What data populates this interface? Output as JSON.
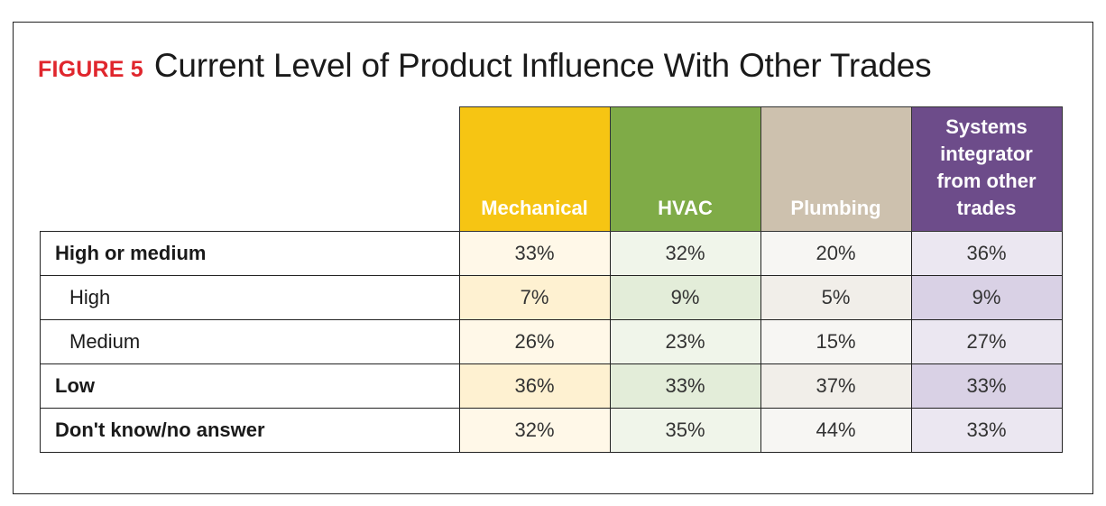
{
  "figure": {
    "label": "FIGURE 5",
    "title": "Current Level of Product Influence With Other Trades"
  },
  "colors": {
    "figure_label": "#e0262d",
    "mechanical": "#f6c513",
    "hvac": "#7fab47",
    "plumbing": "#cdc1ae",
    "systems": "#6d4c8a"
  },
  "chart_data": {
    "type": "table",
    "title": "Current Level of Product Influence With Other Trades",
    "columns": [
      "Mechanical",
      "HVAC",
      "Plumbing",
      "Systems integrator from other trades"
    ],
    "rows": [
      {
        "label": "High or medium",
        "level": "main",
        "values": [
          "33%",
          "32%",
          "20%",
          "36%"
        ]
      },
      {
        "label": "High",
        "level": "sub",
        "values": [
          "7%",
          "9%",
          "5%",
          "9%"
        ]
      },
      {
        "label": "Medium",
        "level": "sub",
        "values": [
          "26%",
          "23%",
          "15%",
          "27%"
        ]
      },
      {
        "label": "Low",
        "level": "main",
        "values": [
          "36%",
          "33%",
          "37%",
          "33%"
        ]
      },
      {
        "label": "Don't know/no answer",
        "level": "main",
        "values": [
          "32%",
          "35%",
          "44%",
          "33%"
        ]
      }
    ],
    "cell_tints": {
      "light": [
        "#fff8e8",
        "#f0f5ea",
        "#f7f6f3",
        "#ebe7f1"
      ],
      "dark": [
        "#fef1d1",
        "#e3edd9",
        "#f1eee9",
        "#d9d1e5"
      ]
    },
    "row_tint": [
      "light",
      "dark",
      "light",
      "dark",
      "light"
    ]
  }
}
